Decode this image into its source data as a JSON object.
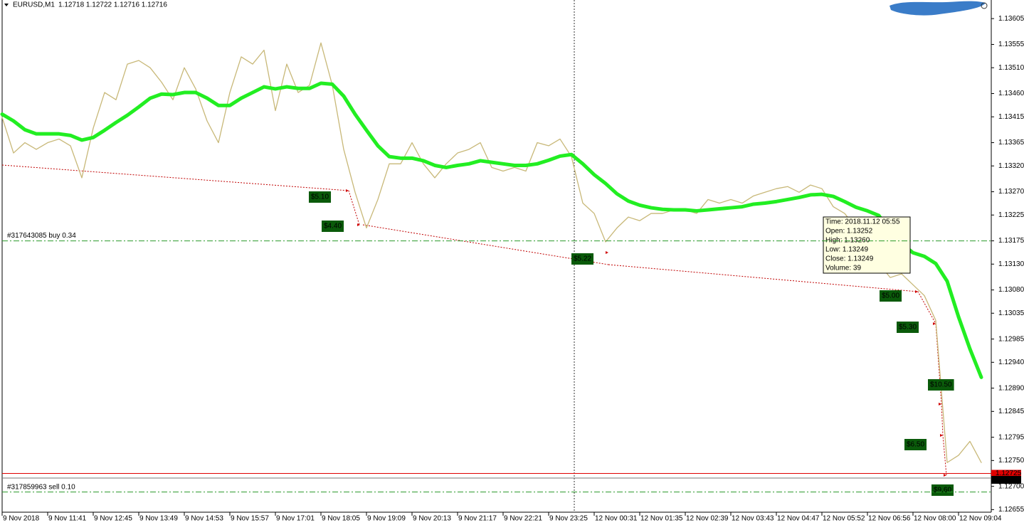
{
  "chart_data": {
    "type": "line",
    "symbol": "EURUSD,M1",
    "quote": "1.12718 1.12722 1.12716 1.12716",
    "categories": [
      "9 Nov 2018",
      null,
      null,
      null,
      "9 Nov 11:41",
      null,
      null,
      null,
      "9 Nov 12:45",
      null,
      null,
      null,
      "9 Nov 13:49",
      null,
      null,
      null,
      "9 Nov 14:53",
      null,
      null,
      null,
      "9 Nov 15:57",
      null,
      null,
      null,
      "9 Nov 17:01",
      null,
      null,
      null,
      "9 Nov 18:05",
      null,
      null,
      null,
      "9 Nov 19:09",
      null,
      null,
      null,
      "9 Nov 20:13",
      null,
      null,
      null,
      "9 Nov 21:17",
      null,
      null,
      null,
      "9 Nov 22:21",
      null,
      null,
      null,
      "9 Nov 23:25",
      null,
      null,
      null,
      "12 Nov 00:31",
      null,
      null,
      null,
      "12 Nov 01:35",
      null,
      null,
      null,
      "12 Nov 02:39",
      null,
      null,
      null,
      "12 Nov 03:43",
      null,
      null,
      null,
      "12 Nov 04:47",
      null,
      null,
      null,
      "12 Nov 05:52",
      null,
      null,
      null,
      "12 Nov 06:56",
      null,
      null,
      null,
      "12 Nov 08:00",
      null,
      null,
      null,
      "12 Nov 09:04",
      null,
      null
    ],
    "series": [
      {
        "color": "#c8b878",
        "values": [
          1.13414,
          1.13345,
          1.13365,
          1.13352,
          1.13365,
          1.13372,
          1.13359,
          1.13297,
          1.13393,
          1.13462,
          1.13448,
          1.13517,
          1.13524,
          1.1351,
          1.13482,
          1.13448,
          1.1351,
          1.13469,
          1.13407,
          1.13365,
          1.13462,
          1.13531,
          1.13517,
          1.13544,
          1.13427,
          1.13517,
          1.13462,
          1.13476,
          1.13558,
          1.13476,
          1.13352,
          1.13269,
          1.132,
          1.13255,
          1.13324,
          1.13324,
          1.13365,
          1.13324,
          1.13297,
          1.13324,
          1.13345,
          1.13352,
          1.13365,
          1.13317,
          1.1331,
          1.13317,
          1.1331,
          1.13365,
          1.13359,
          1.13372,
          1.13338,
          1.13248,
          1.13228,
          1.13173,
          1.132,
          1.13221,
          1.13214,
          1.13228,
          1.13228,
          1.13235,
          1.13235,
          1.13228,
          1.13255,
          1.13248,
          1.13255,
          1.13248,
          1.13262,
          1.13269,
          1.13276,
          1.1328,
          1.13269,
          1.13283,
          1.13276,
          1.13241,
          1.13228,
          1.132,
          1.13173,
          1.13131,
          1.13104,
          1.13111,
          1.1309,
          1.13069,
          1.13021,
          1.12746,
          1.1276,
          1.12787,
          1.12746
        ]
      },
      {
        "color": "#22ee22",
        "values": [
          1.1342,
          1.13407,
          1.1339,
          1.13382,
          1.13382,
          1.13382,
          1.13379,
          1.1337,
          1.13375,
          1.13389,
          1.13404,
          1.13418,
          1.13434,
          1.13451,
          1.13459,
          1.13458,
          1.13462,
          1.13462,
          1.13451,
          1.13437,
          1.13437,
          1.13451,
          1.13462,
          1.13473,
          1.13469,
          1.13473,
          1.1347,
          1.1347,
          1.1348,
          1.13478,
          1.13455,
          1.1342,
          1.13389,
          1.13359,
          1.13338,
          1.13335,
          1.13335,
          1.1333,
          1.13321,
          1.13317,
          1.13321,
          1.13324,
          1.1333,
          1.13327,
          1.13324,
          1.13321,
          1.13321,
          1.13324,
          1.13331,
          1.13339,
          1.13342,
          1.13324,
          1.13303,
          1.13286,
          1.13266,
          1.13252,
          1.13244,
          1.13239,
          1.13236,
          1.13235,
          1.13235,
          1.13233,
          1.13235,
          1.13237,
          1.13239,
          1.13241,
          1.13246,
          1.13248,
          1.13251,
          1.13255,
          1.13259,
          1.13264,
          1.13265,
          1.13261,
          1.13251,
          1.1324,
          1.13233,
          1.13224,
          1.13193,
          1.1317,
          1.13152,
          1.13145,
          1.13131,
          1.13097,
          1.13028,
          1.12966,
          1.12911
        ]
      }
    ],
    "ylim": [
      1.1265,
      1.13641
    ],
    "yticks": [
      1.13605,
      1.13555,
      {
        "value": 1.1351,
        "label": "1.13510"
      },
      {
        "value": 1.1346,
        "label": "1.13460"
      },
      1.13415,
      1.13365,
      {
        "value": 1.1332,
        "label": "1.13320"
      },
      {
        "value": 1.1327,
        "label": "1.13270"
      },
      1.13225,
      1.13175,
      {
        "value": 1.1313,
        "label": "1.13130"
      },
      {
        "value": 1.1308,
        "label": "1.13080"
      },
      1.13035,
      1.12985,
      {
        "value": 1.1294,
        "label": "1.12940"
      },
      {
        "value": 1.1289,
        "label": "1.12890"
      },
      1.12845,
      1.12795,
      {
        "value": 1.1275,
        "label": "1.12750"
      },
      {
        "value": 1.127,
        "label": "1.12700"
      },
      1.12655
    ],
    "orders": [
      {
        "label": "#317643085 buy 0.34",
        "price": 1.13175
      },
      {
        "label": "#317859963 sell 0.10",
        "price": 1.12689
      }
    ],
    "ask": 1.12725,
    "bid": 1.12716,
    "trades": [
      "$5.10",
      "$4.40",
      "$5.22",
      "$5.00",
      "$5.30",
      "$10.50",
      "$6.50",
      "$9.60"
    ],
    "tooltip": [
      "Time: 2018.11.12 05:55",
      "Open: 1.13252",
      "High: 1.13260",
      "Low: 1.13249",
      "Close: 1.13249",
      "Volume: 39"
    ]
  }
}
